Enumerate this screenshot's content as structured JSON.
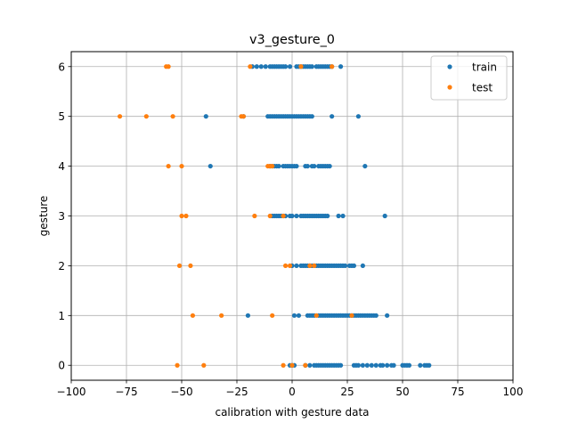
{
  "chart_data": {
    "type": "scatter",
    "title": "v3_gesture_0",
    "xlabel": "calibration with gesture data",
    "ylabel": "gesture",
    "xlim": [
      -100,
      100
    ],
    "ylim": [
      -0.3,
      6.3
    ],
    "xticks": [
      -100,
      -75,
      -50,
      -25,
      0,
      25,
      50,
      75,
      100
    ],
    "xtick_labels": [
      "−100",
      "−75",
      "−50",
      "−25",
      "0",
      "25",
      "50",
      "75",
      "100"
    ],
    "yticks": [
      0,
      1,
      2,
      3,
      4,
      5,
      6
    ],
    "ytick_labels": [
      "0",
      "1",
      "2",
      "3",
      "4",
      "5",
      "6"
    ],
    "grid": true,
    "legend_position": "top-right",
    "series": [
      {
        "name": "train",
        "color": "#1f77b4",
        "points": [
          {
            "y": 0,
            "x": [
              -1,
              0,
              1,
              6,
              8,
              10,
              11,
              12,
              13,
              14,
              15,
              16,
              17,
              18,
              19,
              20,
              21,
              22,
              28,
              29,
              30,
              32,
              34,
              36,
              38,
              40,
              41,
              43,
              45,
              46,
              50,
              51,
              52,
              53,
              58,
              60,
              61,
              62
            ]
          },
          {
            "y": 1,
            "x": [
              -20,
              1,
              3,
              7,
              8,
              9,
              10,
              12,
              13,
              14,
              15,
              16,
              17,
              18,
              19,
              20,
              21,
              22,
              23,
              24,
              25,
              26,
              27,
              28,
              29,
              30,
              31,
              32,
              33,
              34,
              35,
              36,
              37,
              38,
              43
            ]
          },
          {
            "y": 2,
            "x": [
              0,
              2,
              4,
              5,
              6,
              7,
              8,
              9,
              10,
              11,
              12,
              13,
              14,
              15,
              16,
              17,
              18,
              19,
              20,
              21,
              22,
              23,
              24,
              26,
              27,
              28,
              32
            ]
          },
          {
            "y": 3,
            "x": [
              -9,
              -8,
              -7,
              -6,
              -5,
              -4,
              -3,
              -1,
              0,
              2,
              4,
              5,
              6,
              7,
              8,
              9,
              10,
              11,
              12,
              13,
              14,
              15,
              16,
              21,
              23,
              42
            ]
          },
          {
            "y": 4,
            "x": [
              -37,
              -10,
              -9,
              -8,
              -7,
              -6,
              -4,
              -3,
              -2,
              -1,
              0,
              1,
              2,
              6,
              7,
              9,
              10,
              12,
              13,
              14,
              15,
              16,
              17,
              33
            ]
          },
          {
            "y": 5,
            "x": [
              -39,
              -22,
              -11,
              -10,
              -9,
              -8,
              -7,
              -6,
              -5,
              -4,
              -3,
              -2,
              -1,
              0,
              1,
              2,
              3,
              4,
              5,
              6,
              7,
              8,
              9,
              18,
              30
            ]
          },
          {
            "y": 6,
            "x": [
              -18,
              -16,
              -14,
              -12,
              -10,
              -9,
              -8,
              -7,
              -6,
              -5,
              -4,
              -3,
              -1,
              2,
              3,
              4,
              5,
              6,
              7,
              8,
              9,
              11,
              12,
              13,
              14,
              15,
              16,
              17,
              18,
              22
            ]
          }
        ]
      },
      {
        "name": "test",
        "color": "#ff7f0e",
        "points": [
          {
            "y": 0,
            "x": [
              -52,
              -40,
              -4,
              0,
              6
            ]
          },
          {
            "y": 1,
            "x": [
              -45,
              -32,
              -9,
              11,
              27
            ]
          },
          {
            "y": 2,
            "x": [
              -51,
              -46,
              -3,
              -1,
              8,
              10
            ]
          },
          {
            "y": 3,
            "x": [
              -50,
              -48,
              -17,
              -10,
              -4
            ]
          },
          {
            "y": 4,
            "x": [
              -56,
              -50,
              -11,
              -10,
              -9
            ]
          },
          {
            "y": 5,
            "x": [
              -78,
              -66,
              -54,
              -23,
              -22
            ]
          },
          {
            "y": 6,
            "x": [
              -57,
              -56,
              -19,
              4,
              18
            ]
          }
        ]
      }
    ]
  }
}
